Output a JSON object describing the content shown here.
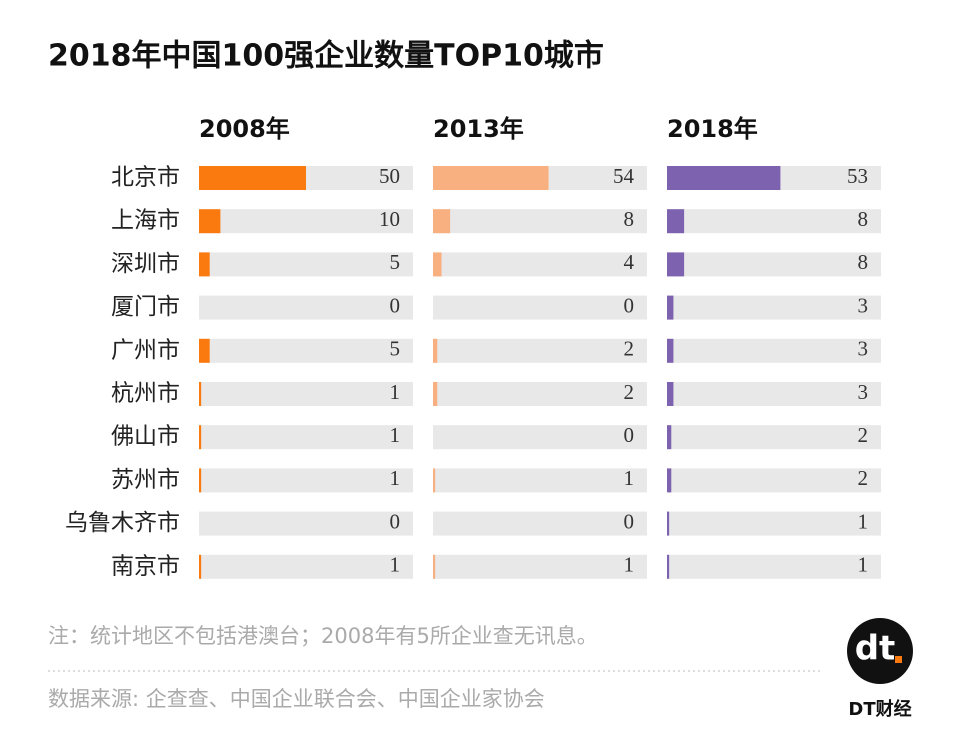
{
  "chart_data": {
    "type": "bar",
    "layout": "small-multiples",
    "title": "2018年中国100强企业数量TOP10城市",
    "categories": [
      "北京市",
      "上海市",
      "深圳市",
      "厦门市",
      "广州市",
      "杭州市",
      "佛山市",
      "苏州市",
      "乌鲁木齐市",
      "南京市"
    ],
    "xlim": [
      0,
      100
    ],
    "series": [
      {
        "name": "2008年",
        "color": "#fb7a10",
        "values": [
          50,
          10,
          5,
          0,
          5,
          1,
          1,
          1,
          0,
          1
        ]
      },
      {
        "name": "2013年",
        "color": "#f9b080",
        "values": [
          54,
          8,
          4,
          0,
          2,
          2,
          0,
          1,
          0,
          1
        ]
      },
      {
        "name": "2018年",
        "color": "#7d62b0",
        "values": [
          53,
          8,
          8,
          3,
          3,
          3,
          2,
          2,
          1,
          1
        ]
      }
    ],
    "note": "注：统计地区不包括港澳台；2008年有5所企业查无讯息。",
    "source": "数据来源: 企查查、中国企业联合会、中国企业家协会"
  },
  "logo": {
    "mark": "dt",
    "name": "DT财经"
  }
}
